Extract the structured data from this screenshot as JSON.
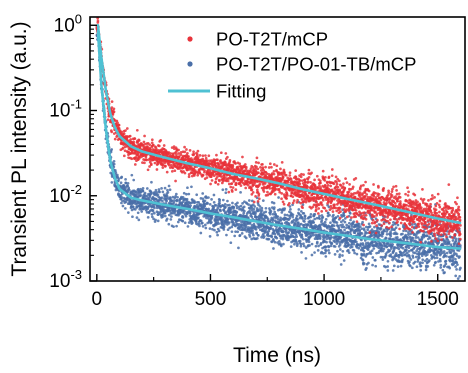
{
  "chart_data": {
    "type": "scatter",
    "title": "",
    "xlabel": "Time (ns)",
    "ylabel": "Transient PL intensity (a.u.)",
    "xlim": [
      -30,
      1620
    ],
    "ylim": [
      0.001,
      1.25
    ],
    "yscale": "log",
    "x_ticks": [
      0,
      500,
      1000,
      1500
    ],
    "x_tick_labels": [
      "0",
      "500",
      "1000",
      "1500"
    ],
    "y_ticks": [
      0.001,
      0.01,
      0.1,
      1
    ],
    "y_tick_labels": [
      {
        "base": "10",
        "exp": "-3"
      },
      {
        "base": "10",
        "exp": "-2"
      },
      {
        "base": "10",
        "exp": "-1"
      },
      {
        "base": "10",
        "exp": "0"
      }
    ],
    "grid": false,
    "legend_position": "top-right",
    "series": [
      {
        "name": "PO-T2T/mCP",
        "kind": "points",
        "color": "#e8333a",
        "x": [
          5,
          20,
          40,
          60,
          80,
          100,
          150,
          200,
          300,
          400,
          500,
          600,
          700,
          800,
          900,
          1000,
          1100,
          1200,
          1300,
          1400,
          1500,
          1600
        ],
        "y": [
          1.0,
          0.42,
          0.17,
          0.09,
          0.063,
          0.05,
          0.038,
          0.033,
          0.028,
          0.024,
          0.021,
          0.018,
          0.016,
          0.014,
          0.012,
          0.0105,
          0.0092,
          0.0081,
          0.0071,
          0.0062,
          0.0054,
          0.0048
        ]
      },
      {
        "name": "PO-T2T/PO-01-TB/mCP",
        "kind": "points",
        "color": "#4a6fa8",
        "x": [
          5,
          20,
          40,
          60,
          80,
          100,
          150,
          200,
          300,
          400,
          500,
          600,
          700,
          800,
          900,
          1000,
          1100,
          1200,
          1300,
          1400,
          1500,
          1600
        ],
        "y": [
          0.85,
          0.2,
          0.06,
          0.025,
          0.016,
          0.012,
          0.0095,
          0.0088,
          0.0078,
          0.007,
          0.0062,
          0.0056,
          0.005,
          0.0045,
          0.0041,
          0.0037,
          0.0034,
          0.0031,
          0.0029,
          0.0027,
          0.0025,
          0.0024
        ]
      },
      {
        "name": "Fitting",
        "kind": "line",
        "color": "#4fc1d3",
        "fits": [
          {
            "x": [
              5,
              20,
              40,
              60,
              80,
              100,
              150,
              200,
              300,
              400,
              500,
              600,
              700,
              800,
              900,
              1000,
              1100,
              1200,
              1300,
              1400,
              1500,
              1600
            ],
            "y": [
              1.0,
              0.42,
              0.17,
              0.09,
              0.063,
              0.05,
              0.038,
              0.033,
              0.028,
              0.024,
              0.021,
              0.018,
              0.016,
              0.014,
              0.012,
              0.0105,
              0.0092,
              0.0081,
              0.0071,
              0.0062,
              0.0054,
              0.0048
            ]
          },
          {
            "x": [
              5,
              20,
              40,
              60,
              80,
              100,
              150,
              200,
              300,
              400,
              500,
              600,
              700,
              800,
              900,
              1000,
              1100,
              1200,
              1300,
              1400,
              1500,
              1600
            ],
            "y": [
              0.85,
              0.2,
              0.06,
              0.025,
              0.016,
              0.012,
              0.0095,
              0.0088,
              0.0078,
              0.007,
              0.0062,
              0.0056,
              0.005,
              0.0045,
              0.0041,
              0.0037,
              0.0034,
              0.0031,
              0.0029,
              0.0027,
              0.0025,
              0.0024
            ]
          }
        ]
      }
    ]
  }
}
